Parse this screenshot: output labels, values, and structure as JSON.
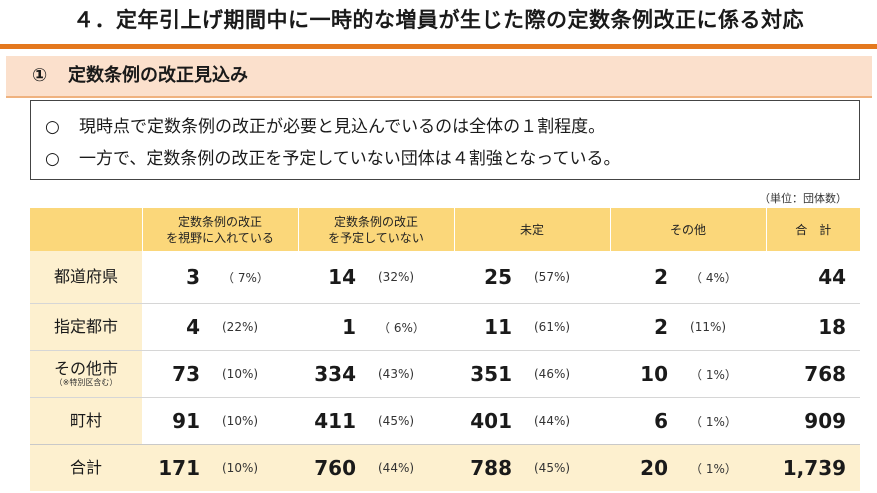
{
  "title": "４．定年引上げ期間中に一時的な増員が生じた際の定数条例改正に係る対応",
  "section": {
    "number": "①",
    "label": "定数条例の改正見込み"
  },
  "summary": {
    "bullet": "○",
    "lines": [
      "現時点で定数条例の改正が必要と見込んでいるのは全体の１割程度。",
      "一方で、定数条例の改正を予定していない団体は４割強となっている。"
    ]
  },
  "unit_note": "（単位：団体数）",
  "table": {
    "headers": [
      "",
      "定数条例の改正\nを視野に入れている",
      "定数条例の改正\nを予定していない",
      "未定",
      "その他",
      "合　計"
    ],
    "rows": [
      {
        "label": "都道府県",
        "sub": "",
        "c1": "3",
        "p1": "（ 7%）",
        "c2": "14",
        "p2": "(32%)",
        "c3": "25",
        "p3": "(57%)",
        "c4": "2",
        "p4": "（ 4%）",
        "total": "44"
      },
      {
        "label": "指定都市",
        "sub": "",
        "c1": "4",
        "p1": "(22%)",
        "c2": "1",
        "p2": "（ 6%）",
        "c3": "11",
        "p3": "(61%)",
        "c4": "2",
        "p4": "(11%)",
        "total": "18"
      },
      {
        "label": "その他市",
        "sub": "（※特別区含む）",
        "c1": "73",
        "p1": "(10%)",
        "c2": "334",
        "p2": "(43%)",
        "c3": "351",
        "p3": "(46%)",
        "c4": "10",
        "p4": "（ 1%）",
        "total": "768"
      },
      {
        "label": "町村",
        "sub": "",
        "c1": "91",
        "p1": "(10%)",
        "c2": "411",
        "p2": "(45%)",
        "c3": "401",
        "p3": "(44%)",
        "c4": "6",
        "p4": "（ 1%）",
        "total": "909"
      },
      {
        "label": "合計",
        "sub": "",
        "c1": "171",
        "p1": "(10%)",
        "c2": "760",
        "p2": "(44%)",
        "c3": "788",
        "p3": "(45%)",
        "c4": "20",
        "p4": "（ 1%）",
        "total": "1,739"
      }
    ]
  },
  "colors": {
    "title_rule": "#e4781e",
    "section_bg": "#fbe0cc",
    "header_bg": "#fbd77a",
    "rowhead_bg": "#fdf0cf"
  }
}
